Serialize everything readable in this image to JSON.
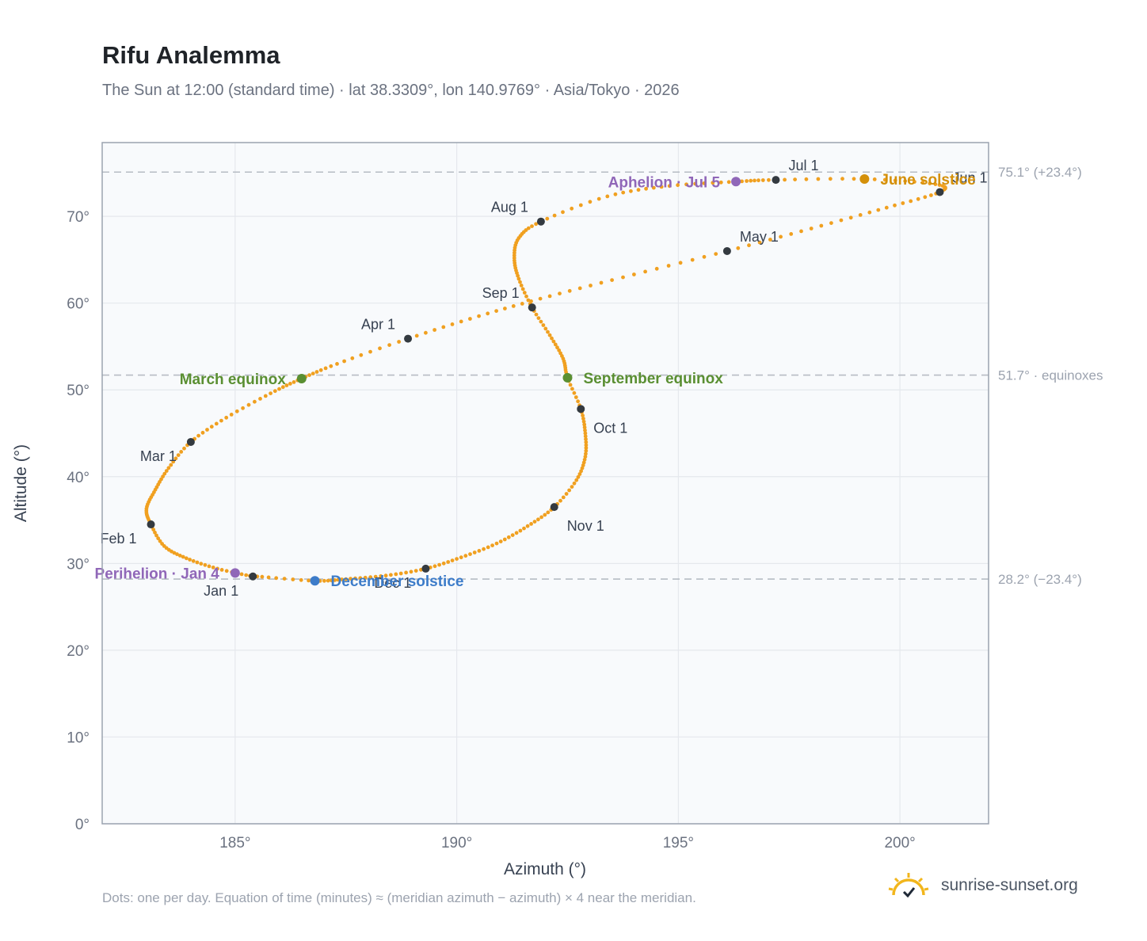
{
  "title": "Rifu Analemma",
  "subtitle": "The Sun at 12:00 (standard time) · lat 38.3309°, lon 140.9769° · Asia/Tokyo · 2026",
  "footnote": "Dots: one per day. Equation of time (minutes) ≈ (meridian azimuth − azimuth) × 4 near the meridian.",
  "brand": {
    "text": "sunrise-sunset.org",
    "icon": "sun-checkmark-logo-icon"
  },
  "colors": {
    "curve": "#f0a020",
    "month_marker": "#343a40",
    "equinox": "#5a8f32",
    "june_solstice": "#d4900a",
    "december_solstice": "#3d7cc9",
    "apsis": "#9067b8",
    "reference_line": "#b6bcc4",
    "plot_background": "#f8fafc",
    "grid": "#e5e8ed",
    "frame": "#9aa3af"
  },
  "chart_data": {
    "type": "scatter",
    "title": "Rifu Analemma",
    "subtitle": "The Sun at 12:00 (standard time) · lat 38.3309°, lon 140.9769° · Asia/Tokyo · 2026",
    "xlabel": "Azimuth (°)",
    "ylabel": "Altitude (°)",
    "xlim": [
      182,
      202
    ],
    "ylim": [
      0,
      78.5
    ],
    "xticks": [
      185,
      190,
      195,
      200
    ],
    "xtick_labels": [
      "185°",
      "190°",
      "195°",
      "200°"
    ],
    "yticks": [
      0,
      10,
      20,
      30,
      40,
      50,
      60,
      70
    ],
    "ytick_labels": [
      "0°",
      "10°",
      "20°",
      "30°",
      "40°",
      "50°",
      "60°",
      "70°"
    ],
    "grid": true,
    "series_name": "",
    "path_points": [
      {
        "date": "2026-01-01",
        "az": 185.4,
        "alt": 28.5
      },
      {
        "date": "2026-01-08",
        "az": 184.6,
        "alt": 29.4
      },
      {
        "date": "2026-01-15",
        "az": 183.9,
        "alt": 30.6
      },
      {
        "date": "2026-01-22",
        "az": 183.4,
        "alt": 32.0
      },
      {
        "date": "2026-02-01",
        "az": 183.1,
        "alt": 34.5
      },
      {
        "date": "2026-02-08",
        "az": 183.0,
        "alt": 36.3
      },
      {
        "date": "2026-02-15",
        "az": 183.2,
        "alt": 38.5
      },
      {
        "date": "2026-02-22",
        "az": 183.5,
        "alt": 41.0
      },
      {
        "date": "2026-03-01",
        "az": 184.0,
        "alt": 44.0
      },
      {
        "date": "2026-03-08",
        "az": 184.8,
        "alt": 46.8
      },
      {
        "date": "2026-03-15",
        "az": 185.8,
        "alt": 49.6
      },
      {
        "date": "2026-03-20",
        "az": 186.5,
        "alt": 51.3
      },
      {
        "date": "2026-03-25",
        "az": 187.3,
        "alt": 53.0
      },
      {
        "date": "2026-04-01",
        "az": 188.9,
        "alt": 55.9
      },
      {
        "date": "2026-04-08",
        "az": 190.5,
        "alt": 58.5
      },
      {
        "date": "2026-04-15",
        "az": 192.1,
        "alt": 60.8
      },
      {
        "date": "2026-04-22",
        "az": 194.0,
        "alt": 63.3
      },
      {
        "date": "2026-05-01",
        "az": 196.1,
        "alt": 66.0
      },
      {
        "date": "2026-05-10",
        "az": 198.0,
        "alt": 68.6
      },
      {
        "date": "2026-05-20",
        "az": 199.7,
        "alt": 71.0
      },
      {
        "date": "2026-06-01",
        "az": 200.9,
        "alt": 72.8
      },
      {
        "date": "2026-06-10",
        "az": 200.8,
        "alt": 73.7
      },
      {
        "date": "2026-06-21",
        "az": 199.2,
        "alt": 74.3
      },
      {
        "date": "2026-07-01",
        "az": 197.2,
        "alt": 74.2
      },
      {
        "date": "2026-07-05",
        "az": 196.3,
        "alt": 74.0
      },
      {
        "date": "2026-07-12",
        "az": 194.8,
        "alt": 73.5
      },
      {
        "date": "2026-07-20",
        "az": 193.4,
        "alt": 72.3
      },
      {
        "date": "2026-08-01",
        "az": 191.9,
        "alt": 69.4
      },
      {
        "date": "2026-08-08",
        "az": 191.4,
        "alt": 67.5
      },
      {
        "date": "2026-08-15",
        "az": 191.3,
        "alt": 65.2
      },
      {
        "date": "2026-08-22",
        "az": 191.4,
        "alt": 62.8
      },
      {
        "date": "2026-09-01",
        "az": 191.7,
        "alt": 59.5
      },
      {
        "date": "2026-09-10",
        "az": 192.1,
        "alt": 56.3
      },
      {
        "date": "2026-09-17",
        "az": 192.4,
        "alt": 53.6
      },
      {
        "date": "2026-09-23",
        "az": 192.5,
        "alt": 51.4
      },
      {
        "date": "2026-10-01",
        "az": 192.8,
        "alt": 47.8
      },
      {
        "date": "2026-10-08",
        "az": 192.9,
        "alt": 45.0
      },
      {
        "date": "2026-10-15",
        "az": 192.9,
        "alt": 42.3
      },
      {
        "date": "2026-10-22",
        "az": 192.7,
        "alt": 39.6
      },
      {
        "date": "2026-11-01",
        "az": 192.2,
        "alt": 36.5
      },
      {
        "date": "2026-11-08",
        "az": 191.6,
        "alt": 34.3
      },
      {
        "date": "2026-11-15",
        "az": 190.9,
        "alt": 32.3
      },
      {
        "date": "2026-11-22",
        "az": 190.1,
        "alt": 30.7
      },
      {
        "date": "2026-12-01",
        "az": 189.3,
        "alt": 29.4
      },
      {
        "date": "2026-12-08",
        "az": 188.4,
        "alt": 28.6
      },
      {
        "date": "2026-12-15",
        "az": 187.5,
        "alt": 28.2
      },
      {
        "date": "2026-12-21",
        "az": 186.8,
        "alt": 28.0
      },
      {
        "date": "2026-12-31",
        "az": 185.5,
        "alt": 28.5
      }
    ],
    "reference_lines": [
      {
        "alt": 75.1,
        "label": "75.1° (+23.4°)"
      },
      {
        "alt": 51.7,
        "label": "51.7° · equinoxes"
      },
      {
        "alt": 28.2,
        "label": "28.2° (−23.4°)"
      }
    ],
    "month_markers": [
      {
        "label": "Jan 1",
        "az": 185.4,
        "alt": 28.5,
        "anchor": "below-left"
      },
      {
        "label": "Feb 1",
        "az": 183.1,
        "alt": 34.5,
        "anchor": "below-left"
      },
      {
        "label": "Mar 1",
        "az": 184.0,
        "alt": 44.0,
        "anchor": "below-left"
      },
      {
        "label": "Apr 1",
        "az": 188.9,
        "alt": 55.9,
        "anchor": "above-left"
      },
      {
        "label": "May 1",
        "az": 196.1,
        "alt": 66.0,
        "anchor": "above-right"
      },
      {
        "label": "Jun 1",
        "az": 200.9,
        "alt": 72.8,
        "anchor": "above-right"
      },
      {
        "label": "Jul 1",
        "az": 197.2,
        "alt": 74.2,
        "anchor": "above-right"
      },
      {
        "label": "Aug 1",
        "az": 191.9,
        "alt": 69.4,
        "anchor": "above-left"
      },
      {
        "label": "Sep 1",
        "az": 191.7,
        "alt": 59.5,
        "anchor": "above-left"
      },
      {
        "label": "Oct 1",
        "az": 192.8,
        "alt": 47.8,
        "anchor": "below-right"
      },
      {
        "label": "Nov 1",
        "az": 192.2,
        "alt": 36.5,
        "anchor": "below-right"
      },
      {
        "label": "Dec 1",
        "az": 189.3,
        "alt": 29.4,
        "anchor": "below-left"
      }
    ],
    "events": [
      {
        "label": "March equinox",
        "az": 186.5,
        "alt": 51.3,
        "color_key": "equinox",
        "side": "left"
      },
      {
        "label": "September equinox",
        "az": 192.5,
        "alt": 51.4,
        "color_key": "equinox",
        "side": "right"
      },
      {
        "label": "June solstice",
        "az": 199.2,
        "alt": 74.3,
        "color_key": "june_solstice",
        "side": "right"
      },
      {
        "label": "December solstice",
        "az": 186.8,
        "alt": 28.0,
        "color_key": "december_solstice",
        "side": "right"
      },
      {
        "label": "Perihelion · Jan 4",
        "az": 185.0,
        "alt": 28.9,
        "color_key": "apsis",
        "side": "left"
      },
      {
        "label": "Aphelion · Jul 5",
        "az": 196.3,
        "alt": 74.0,
        "color_key": "apsis",
        "side": "left"
      }
    ]
  }
}
